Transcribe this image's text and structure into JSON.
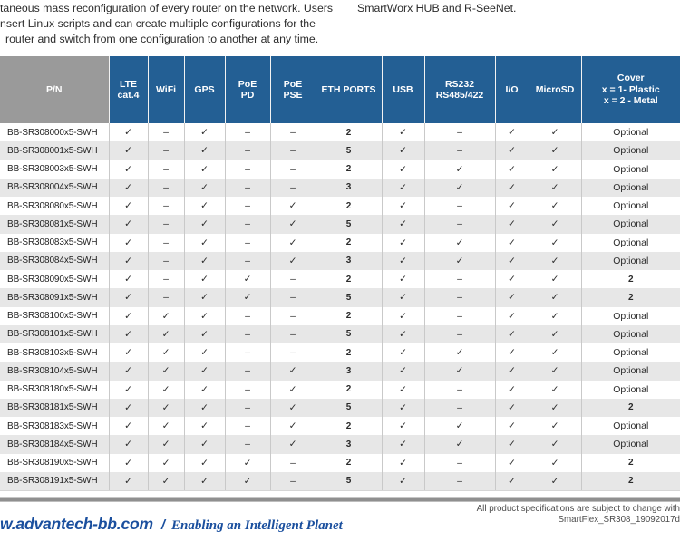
{
  "intro": {
    "left_lines": [
      "taneous mass reconfiguration of every router on the network. Users",
      "nsert Linux scripts and can create multiple configurations for the",
      "router and switch from one configuration to another at any time."
    ],
    "right_line": "SmartWorx HUB and R-SeeNet."
  },
  "table": {
    "columns": [
      {
        "key": "pn",
        "label": "P/N"
      },
      {
        "key": "lte-cat4",
        "label": "LTE\ncat.4"
      },
      {
        "key": "wifi",
        "label": "WiFi"
      },
      {
        "key": "gps",
        "label": "GPS"
      },
      {
        "key": "poe-pd",
        "label": "PoE\nPD"
      },
      {
        "key": "poe-pse",
        "label": "PoE\nPSE"
      },
      {
        "key": "eth-ports",
        "label": "ETH PORTS"
      },
      {
        "key": "usb",
        "label": "USB"
      },
      {
        "key": "rs232-rs485",
        "label": "RS232\nRS485/422"
      },
      {
        "key": "io",
        "label": "I/O"
      },
      {
        "key": "microsd",
        "label": "MicroSD"
      },
      {
        "key": "cover",
        "label": "Cover\nx = 1- Plastic\nx = 2 - Metal"
      }
    ],
    "rows": [
      {
        "pn": "BB-SR308000x5-SWH",
        "cells": [
          "✓",
          "–",
          "✓",
          "–",
          "–",
          "2",
          "✓",
          "–",
          "✓",
          "✓",
          "Optional"
        ]
      },
      {
        "pn": "BB-SR308001x5-SWH",
        "cells": [
          "✓",
          "–",
          "✓",
          "–",
          "–",
          "5",
          "✓",
          "–",
          "✓",
          "✓",
          "Optional"
        ]
      },
      {
        "pn": "BB-SR308003x5-SWH",
        "cells": [
          "✓",
          "–",
          "✓",
          "–",
          "–",
          "2",
          "✓",
          "✓",
          "✓",
          "✓",
          "Optional"
        ]
      },
      {
        "pn": "BB-SR308004x5-SWH",
        "cells": [
          "✓",
          "–",
          "✓",
          "–",
          "–",
          "3",
          "✓",
          "✓",
          "✓",
          "✓",
          "Optional"
        ]
      },
      {
        "pn": "BB-SR308080x5-SWH",
        "cells": [
          "✓",
          "–",
          "✓",
          "–",
          "✓",
          "2",
          "✓",
          "–",
          "✓",
          "✓",
          "Optional"
        ]
      },
      {
        "pn": "BB-SR308081x5-SWH",
        "cells": [
          "✓",
          "–",
          "✓",
          "–",
          "✓",
          "5",
          "✓",
          "–",
          "✓",
          "✓",
          "Optional"
        ]
      },
      {
        "pn": "BB-SR308083x5-SWH",
        "cells": [
          "✓",
          "–",
          "✓",
          "–",
          "✓",
          "2",
          "✓",
          "✓",
          "✓",
          "✓",
          "Optional"
        ]
      },
      {
        "pn": "BB-SR308084x5-SWH",
        "cells": [
          "✓",
          "–",
          "✓",
          "–",
          "✓",
          "3",
          "✓",
          "✓",
          "✓",
          "✓",
          "Optional"
        ]
      },
      {
        "pn": "BB-SR308090x5-SWH",
        "cells": [
          "✓",
          "–",
          "✓",
          "✓",
          "–",
          "2",
          "✓",
          "–",
          "✓",
          "✓",
          "2"
        ]
      },
      {
        "pn": "BB-SR308091x5-SWH",
        "cells": [
          "✓",
          "–",
          "✓",
          "✓",
          "–",
          "5",
          "✓",
          "–",
          "✓",
          "✓",
          "2"
        ]
      },
      {
        "pn": "BB-SR308100x5-SWH",
        "cells": [
          "✓",
          "✓",
          "✓",
          "–",
          "–",
          "2",
          "✓",
          "–",
          "✓",
          "✓",
          "Optional"
        ]
      },
      {
        "pn": "BB-SR308101x5-SWH",
        "cells": [
          "✓",
          "✓",
          "✓",
          "–",
          "–",
          "5",
          "✓",
          "–",
          "✓",
          "✓",
          "Optional"
        ]
      },
      {
        "pn": "BB-SR308103x5-SWH",
        "cells": [
          "✓",
          "✓",
          "✓",
          "–",
          "–",
          "2",
          "✓",
          "✓",
          "✓",
          "✓",
          "Optional"
        ]
      },
      {
        "pn": "BB-SR308104x5-SWH",
        "cells": [
          "✓",
          "✓",
          "✓",
          "–",
          "✓",
          "3",
          "✓",
          "✓",
          "✓",
          "✓",
          "Optional"
        ]
      },
      {
        "pn": "BB-SR308180x5-SWH",
        "cells": [
          "✓",
          "✓",
          "✓",
          "–",
          "✓",
          "2",
          "✓",
          "–",
          "✓",
          "✓",
          "Optional"
        ]
      },
      {
        "pn": "BB-SR308181x5-SWH",
        "cells": [
          "✓",
          "✓",
          "✓",
          "–",
          "✓",
          "5",
          "✓",
          "–",
          "✓",
          "✓",
          "2"
        ]
      },
      {
        "pn": "BB-SR308183x5-SWH",
        "cells": [
          "✓",
          "✓",
          "✓",
          "–",
          "✓",
          "2",
          "✓",
          "✓",
          "✓",
          "✓",
          "Optional"
        ]
      },
      {
        "pn": "BB-SR308184x5-SWH",
        "cells": [
          "✓",
          "✓",
          "✓",
          "–",
          "✓",
          "3",
          "✓",
          "✓",
          "✓",
          "✓",
          "Optional"
        ]
      },
      {
        "pn": "BB-SR308190x5-SWH",
        "cells": [
          "✓",
          "✓",
          "✓",
          "✓",
          "–",
          "2",
          "✓",
          "–",
          "✓",
          "✓",
          "2"
        ]
      },
      {
        "pn": "BB-SR308191x5-SWH",
        "cells": [
          "✓",
          "✓",
          "✓",
          "✓",
          "–",
          "5",
          "✓",
          "–",
          "✓",
          "✓",
          "2"
        ]
      }
    ]
  },
  "footer": {
    "brand": "w.advantech-bb.com",
    "separator": "/",
    "slogan": "Enabling an Intelligent Planet",
    "note_line1": "All product specifications are subject to change with",
    "note_line2": "SmartFlex_SR308_19092017d"
  },
  "colors": {
    "header_blue": "#235f94",
    "header_gray": "#9a9a9a",
    "row_alt_gray": "#e7e7e7",
    "brand_blue": "#1a4f9e",
    "body_text": "#2b2b2b",
    "divider_gray": "#8f8f8f"
  }
}
